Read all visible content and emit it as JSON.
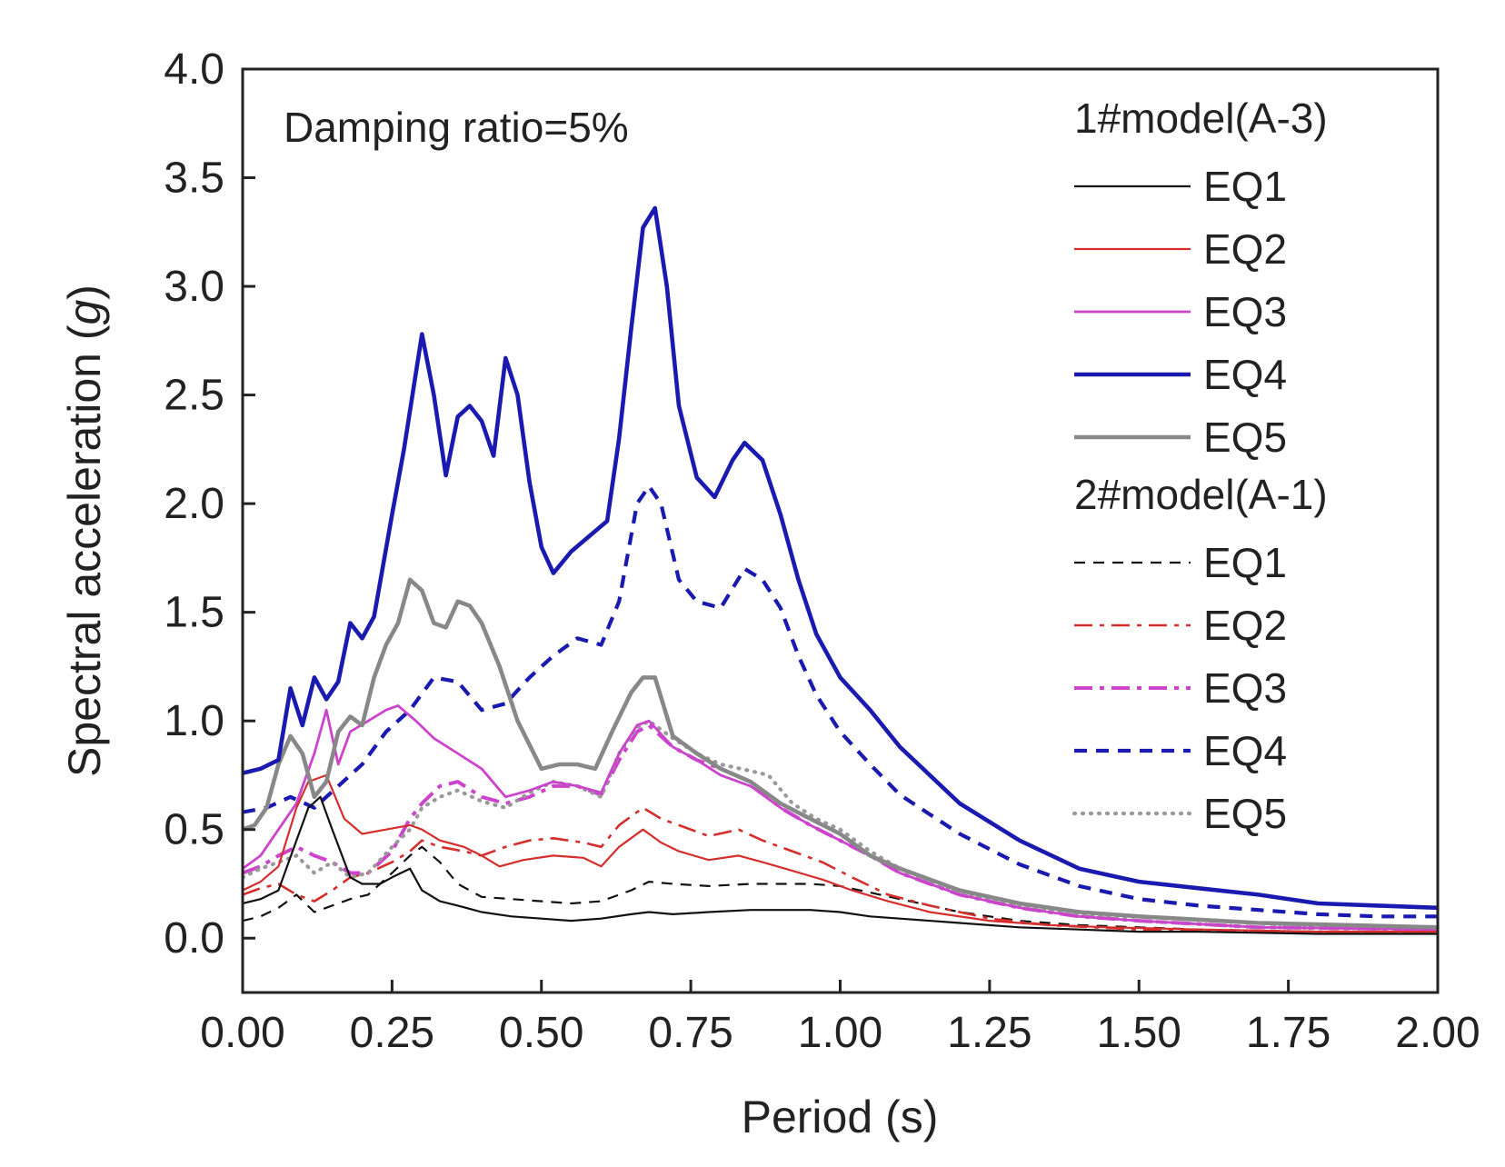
{
  "chart_data": {
    "type": "line",
    "title": "",
    "xlabel": "Period (s)",
    "ylabel_prefix": "Spectral acceleration (",
    "ylabel_italic": "g",
    "ylabel_suffix": ")",
    "annotation": "Damping ratio=5%",
    "xlim": [
      0,
      2
    ],
    "ylim": [
      -0.25,
      4.0
    ],
    "xticks": [
      0,
      0.25,
      0.5,
      0.75,
      1.0,
      1.25,
      1.5,
      1.75,
      2.0
    ],
    "xtick_labels": [
      "0.00",
      "0.25",
      "0.50",
      "0.75",
      "1.00",
      "1.25",
      "1.50",
      "1.75",
      "2.00"
    ],
    "yticks": [
      0,
      0.5,
      1.0,
      1.5,
      2.0,
      2.5,
      3.0,
      3.5,
      4.0
    ],
    "ytick_labels": [
      "0.0",
      "0.5",
      "1.0",
      "1.5",
      "2.0",
      "2.5",
      "3.0",
      "3.5",
      "4.0"
    ],
    "legend_groups": [
      "1#model(A-3)",
      "2#model(A-1)"
    ],
    "series": [
      {
        "name": "EQ1",
        "group": "1#model(A-3)",
        "color": "#111111",
        "style": "solid",
        "x": [
          0,
          0.03,
          0.06,
          0.09,
          0.11,
          0.13,
          0.15,
          0.18,
          0.2,
          0.23,
          0.25,
          0.28,
          0.3,
          0.33,
          0.36,
          0.4,
          0.45,
          0.5,
          0.55,
          0.6,
          0.65,
          0.68,
          0.72,
          0.78,
          0.85,
          0.9,
          0.95,
          1.0,
          1.05,
          1.1,
          1.2,
          1.3,
          1.4,
          1.5,
          1.6,
          1.8,
          2.0
        ],
        "y": [
          0.16,
          0.18,
          0.22,
          0.45,
          0.6,
          0.65,
          0.5,
          0.28,
          0.25,
          0.25,
          0.28,
          0.32,
          0.22,
          0.17,
          0.15,
          0.12,
          0.1,
          0.09,
          0.08,
          0.09,
          0.11,
          0.12,
          0.11,
          0.12,
          0.13,
          0.13,
          0.13,
          0.12,
          0.1,
          0.09,
          0.07,
          0.05,
          0.04,
          0.03,
          0.03,
          0.02,
          0.02
        ]
      },
      {
        "name": "EQ2",
        "group": "1#model(A-3)",
        "color": "#d62d2d",
        "style": "solid",
        "x": [
          0,
          0.03,
          0.06,
          0.09,
          0.11,
          0.14,
          0.17,
          0.2,
          0.24,
          0.28,
          0.3,
          0.33,
          0.37,
          0.4,
          0.43,
          0.47,
          0.52,
          0.57,
          0.6,
          0.63,
          0.67,
          0.7,
          0.73,
          0.78,
          0.83,
          0.87,
          0.92,
          0.97,
          1.02,
          1.08,
          1.15,
          1.25,
          1.35,
          1.45,
          1.6,
          1.8,
          2.0
        ],
        "y": [
          0.22,
          0.26,
          0.33,
          0.6,
          0.72,
          0.75,
          0.55,
          0.48,
          0.5,
          0.52,
          0.5,
          0.45,
          0.42,
          0.38,
          0.33,
          0.36,
          0.38,
          0.37,
          0.33,
          0.42,
          0.5,
          0.44,
          0.4,
          0.36,
          0.38,
          0.35,
          0.31,
          0.27,
          0.22,
          0.17,
          0.12,
          0.08,
          0.06,
          0.05,
          0.04,
          0.03,
          0.03
        ]
      },
      {
        "name": "EQ3",
        "group": "1#model(A-3)",
        "color": "#cc44cc",
        "style": "solid",
        "x": [
          0,
          0.03,
          0.06,
          0.09,
          0.12,
          0.14,
          0.16,
          0.18,
          0.21,
          0.24,
          0.26,
          0.29,
          0.32,
          0.36,
          0.4,
          0.44,
          0.48,
          0.52,
          0.56,
          0.6,
          0.63,
          0.66,
          0.68,
          0.72,
          0.76,
          0.8,
          0.85,
          0.9,
          0.95,
          1.0,
          1.05,
          1.1,
          1.2,
          1.3,
          1.4,
          1.5,
          1.7,
          2.0
        ],
        "y": [
          0.32,
          0.38,
          0.5,
          0.62,
          0.85,
          1.05,
          0.8,
          0.95,
          1.0,
          1.05,
          1.07,
          1.0,
          0.92,
          0.85,
          0.78,
          0.65,
          0.68,
          0.72,
          0.7,
          0.67,
          0.85,
          0.98,
          1.0,
          0.88,
          0.82,
          0.75,
          0.7,
          0.6,
          0.52,
          0.45,
          0.38,
          0.3,
          0.2,
          0.14,
          0.1,
          0.08,
          0.05,
          0.04
        ]
      },
      {
        "name": "EQ4",
        "group": "1#model(A-3)",
        "color": "#1a1ab0",
        "style": "solid",
        "x": [
          0,
          0.03,
          0.06,
          0.08,
          0.1,
          0.12,
          0.14,
          0.16,
          0.18,
          0.2,
          0.22,
          0.25,
          0.27,
          0.3,
          0.32,
          0.34,
          0.36,
          0.38,
          0.4,
          0.42,
          0.44,
          0.46,
          0.48,
          0.5,
          0.52,
          0.55,
          0.58,
          0.61,
          0.63,
          0.65,
          0.67,
          0.69,
          0.71,
          0.73,
          0.76,
          0.79,
          0.82,
          0.84,
          0.87,
          0.9,
          0.93,
          0.96,
          1.0,
          1.05,
          1.1,
          1.15,
          1.2,
          1.3,
          1.4,
          1.5,
          1.6,
          1.7,
          1.8,
          1.9,
          2.0
        ],
        "y": [
          0.76,
          0.78,
          0.82,
          1.15,
          0.98,
          1.2,
          1.1,
          1.18,
          1.45,
          1.38,
          1.48,
          1.95,
          2.25,
          2.78,
          2.5,
          2.13,
          2.4,
          2.45,
          2.38,
          2.22,
          2.67,
          2.5,
          2.1,
          1.8,
          1.68,
          1.78,
          1.85,
          1.92,
          2.3,
          2.8,
          3.27,
          3.36,
          3.0,
          2.45,
          2.12,
          2.03,
          2.2,
          2.28,
          2.2,
          1.95,
          1.65,
          1.4,
          1.2,
          1.05,
          0.88,
          0.75,
          0.62,
          0.45,
          0.32,
          0.26,
          0.23,
          0.2,
          0.16,
          0.15,
          0.14
        ]
      },
      {
        "name": "EQ5",
        "group": "1#model(A-3)",
        "color": "#888888",
        "style": "solid",
        "x": [
          0,
          0.02,
          0.04,
          0.06,
          0.08,
          0.1,
          0.12,
          0.14,
          0.16,
          0.18,
          0.2,
          0.22,
          0.24,
          0.26,
          0.28,
          0.3,
          0.32,
          0.34,
          0.36,
          0.38,
          0.4,
          0.43,
          0.46,
          0.5,
          0.53,
          0.56,
          0.59,
          0.62,
          0.65,
          0.67,
          0.69,
          0.72,
          0.76,
          0.8,
          0.85,
          0.9,
          0.95,
          1.0,
          1.05,
          1.1,
          1.2,
          1.3,
          1.4,
          1.5,
          1.7,
          2.0
        ],
        "y": [
          0.5,
          0.52,
          0.6,
          0.8,
          0.93,
          0.85,
          0.65,
          0.72,
          0.95,
          1.02,
          0.98,
          1.2,
          1.35,
          1.45,
          1.65,
          1.6,
          1.45,
          1.43,
          1.55,
          1.53,
          1.45,
          1.25,
          1.0,
          0.78,
          0.8,
          0.8,
          0.78,
          0.96,
          1.13,
          1.2,
          1.2,
          0.93,
          0.85,
          0.78,
          0.72,
          0.62,
          0.55,
          0.48,
          0.38,
          0.32,
          0.22,
          0.16,
          0.12,
          0.1,
          0.07,
          0.05
        ]
      },
      {
        "name": "EQ1",
        "group": "2#model(A-1)",
        "color": "#111111",
        "style": "dash",
        "x": [
          0,
          0.03,
          0.06,
          0.09,
          0.12,
          0.15,
          0.18,
          0.21,
          0.25,
          0.28,
          0.3,
          0.33,
          0.36,
          0.4,
          0.45,
          0.5,
          0.55,
          0.6,
          0.65,
          0.68,
          0.72,
          0.78,
          0.85,
          0.9,
          0.95,
          1.0,
          1.05,
          1.1,
          1.2,
          1.3,
          1.4,
          1.5,
          1.6,
          1.8,
          2.0
        ],
        "y": [
          0.08,
          0.1,
          0.14,
          0.2,
          0.12,
          0.15,
          0.18,
          0.2,
          0.3,
          0.38,
          0.42,
          0.35,
          0.25,
          0.19,
          0.18,
          0.17,
          0.16,
          0.17,
          0.22,
          0.26,
          0.25,
          0.24,
          0.25,
          0.25,
          0.25,
          0.24,
          0.21,
          0.18,
          0.12,
          0.08,
          0.06,
          0.05,
          0.04,
          0.03,
          0.03
        ]
      },
      {
        "name": "EQ2",
        "group": "2#model(A-1)",
        "color": "#d62d2d",
        "style": "dashdot",
        "x": [
          0,
          0.03,
          0.06,
          0.09,
          0.12,
          0.15,
          0.18,
          0.21,
          0.25,
          0.28,
          0.3,
          0.33,
          0.37,
          0.4,
          0.44,
          0.48,
          0.52,
          0.57,
          0.6,
          0.63,
          0.67,
          0.7,
          0.73,
          0.78,
          0.83,
          0.87,
          0.92,
          0.97,
          1.02,
          1.08,
          1.15,
          1.25,
          1.35,
          1.5,
          1.7,
          2.0
        ],
        "y": [
          0.2,
          0.23,
          0.25,
          0.2,
          0.17,
          0.22,
          0.28,
          0.3,
          0.35,
          0.4,
          0.45,
          0.42,
          0.4,
          0.38,
          0.42,
          0.45,
          0.46,
          0.44,
          0.42,
          0.52,
          0.6,
          0.55,
          0.52,
          0.47,
          0.5,
          0.45,
          0.4,
          0.35,
          0.28,
          0.2,
          0.15,
          0.09,
          0.06,
          0.04,
          0.03,
          0.03
        ]
      },
      {
        "name": "EQ3",
        "group": "2#model(A-1)",
        "color": "#cc44cc",
        "style": "dashdot-thick",
        "x": [
          0,
          0.03,
          0.06,
          0.09,
          0.12,
          0.15,
          0.18,
          0.21,
          0.25,
          0.28,
          0.3,
          0.33,
          0.36,
          0.4,
          0.44,
          0.48,
          0.52,
          0.56,
          0.6,
          0.63,
          0.66,
          0.68,
          0.72,
          0.76,
          0.8,
          0.85,
          0.9,
          0.95,
          1.0,
          1.05,
          1.1,
          1.2,
          1.3,
          1.4,
          1.5,
          1.7,
          2.0
        ],
        "y": [
          0.3,
          0.33,
          0.38,
          0.42,
          0.38,
          0.35,
          0.3,
          0.3,
          0.4,
          0.55,
          0.62,
          0.7,
          0.72,
          0.65,
          0.62,
          0.65,
          0.7,
          0.7,
          0.66,
          0.82,
          0.95,
          0.98,
          0.88,
          0.82,
          0.78,
          0.72,
          0.6,
          0.52,
          0.45,
          0.38,
          0.3,
          0.2,
          0.14,
          0.1,
          0.08,
          0.05,
          0.04
        ]
      },
      {
        "name": "EQ4",
        "group": "2#model(A-1)",
        "color": "#1a1ab0",
        "style": "dash-thick",
        "x": [
          0,
          0.04,
          0.08,
          0.12,
          0.16,
          0.2,
          0.24,
          0.28,
          0.32,
          0.36,
          0.4,
          0.44,
          0.48,
          0.52,
          0.56,
          0.6,
          0.63,
          0.66,
          0.68,
          0.7,
          0.73,
          0.76,
          0.8,
          0.84,
          0.87,
          0.9,
          0.93,
          0.96,
          1.0,
          1.05,
          1.1,
          1.2,
          1.3,
          1.4,
          1.5,
          1.6,
          1.7,
          1.8,
          1.9,
          2.0
        ],
        "y": [
          0.58,
          0.6,
          0.65,
          0.6,
          0.7,
          0.8,
          0.95,
          1.05,
          1.2,
          1.18,
          1.05,
          1.08,
          1.2,
          1.3,
          1.38,
          1.35,
          1.55,
          2.0,
          2.08,
          2.0,
          1.65,
          1.55,
          1.52,
          1.7,
          1.65,
          1.52,
          1.3,
          1.12,
          0.95,
          0.8,
          0.66,
          0.48,
          0.34,
          0.24,
          0.18,
          0.15,
          0.13,
          0.11,
          0.1,
          0.1
        ]
      },
      {
        "name": "EQ5",
        "group": "2#model(A-1)",
        "color": "#999999",
        "style": "dot",
        "x": [
          0,
          0.03,
          0.06,
          0.09,
          0.12,
          0.15,
          0.18,
          0.21,
          0.25,
          0.28,
          0.3,
          0.33,
          0.36,
          0.4,
          0.44,
          0.48,
          0.52,
          0.56,
          0.6,
          0.63,
          0.66,
          0.68,
          0.72,
          0.76,
          0.8,
          0.85,
          0.88,
          0.92,
          0.96,
          1.0,
          1.05,
          1.1,
          1.2,
          1.3,
          1.4,
          1.5,
          1.7,
          2.0
        ],
        "y": [
          0.28,
          0.32,
          0.35,
          0.38,
          0.3,
          0.35,
          0.28,
          0.3,
          0.42,
          0.5,
          0.6,
          0.65,
          0.68,
          0.63,
          0.6,
          0.67,
          0.72,
          0.7,
          0.65,
          0.85,
          0.97,
          1.0,
          0.92,
          0.85,
          0.8,
          0.77,
          0.75,
          0.62,
          0.55,
          0.5,
          0.4,
          0.32,
          0.21,
          0.15,
          0.11,
          0.08,
          0.05,
          0.04
        ]
      }
    ]
  }
}
